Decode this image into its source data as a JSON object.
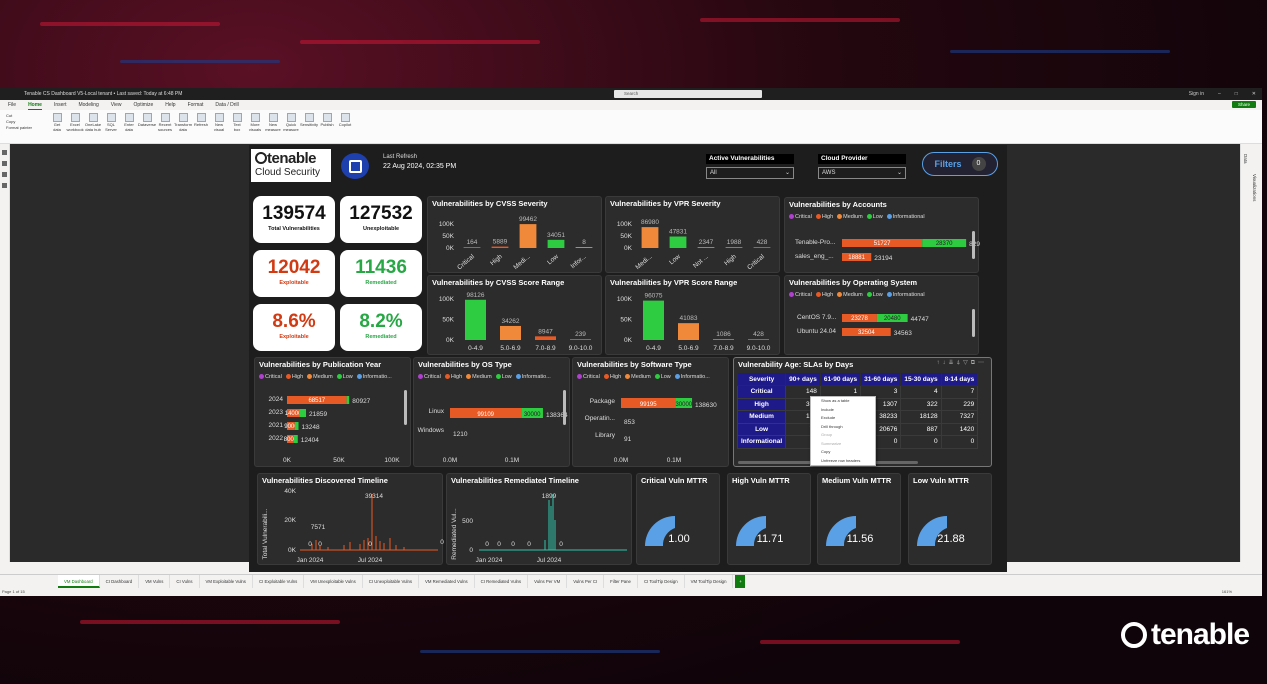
{
  "window": {
    "title": "Tenable CS Dashboard V5-Local tenant • Last saved: Today at 6:48 PM",
    "search_placeholder": "Search",
    "sign_in": "Sign in"
  },
  "ribbon": {
    "tabs": [
      "File",
      "Home",
      "Insert",
      "Modeling",
      "View",
      "Optimize",
      "Help",
      "Format",
      "Data / Drill"
    ],
    "active": "Home",
    "share": "Share",
    "clipboard": [
      "Cut",
      "Copy",
      "Format painter"
    ],
    "buttons": [
      "Get data",
      "Excel workbook",
      "OneLake data hub",
      "SQL Server",
      "Enter data",
      "Dataverse",
      "Recent sources",
      "Transform data",
      "Refresh",
      "New visual",
      "Text box",
      "More visuals",
      "New measure",
      "Quick measure",
      "Sensitivity",
      "Publish",
      "Copilot"
    ],
    "groups": [
      "Clipboard",
      "Data",
      "Queries",
      "Insert",
      "Calculations",
      "Sensitivity",
      "Share",
      "Copilot"
    ]
  },
  "right_pane": {
    "data": "Data",
    "visualizations": "Visualizations"
  },
  "header": {
    "logo_word": "tenable",
    "logo_sub": "Cloud Security",
    "last_refresh_label": "Last Refresh",
    "last_refresh_value": "22 Aug 2024, 02:35 PM",
    "active_vuln_label": "Active Vulnerabilities",
    "active_vuln_value": "All",
    "cloud_provider_label": "Cloud Provider",
    "cloud_provider_value": "AWS",
    "filters_label": "Filters",
    "filters_count": "0"
  },
  "kpis": [
    {
      "value": "139574",
      "label": "Total Vulnerabilities",
      "color": "#111111"
    },
    {
      "value": "127532",
      "label": "Unexploitable",
      "color": "#111111"
    },
    {
      "value": "12042",
      "label": "Exploitable",
      "color": "#d13a12"
    },
    {
      "value": "11436",
      "label": "Remediated",
      "color": "#28a745"
    },
    {
      "value": "8.6%",
      "label": "Exploitable",
      "color": "#d13a12"
    },
    {
      "value": "8.2%",
      "label": "Remediated",
      "color": "#28a745"
    }
  ],
  "colors": {
    "critical": "#b040d0",
    "high": "#e85a25",
    "medium": "#f08a3a",
    "low": "#2ecc40",
    "informational": "#5aa0e6",
    "accent": "#1e1a8a",
    "gauge": "#5aa0e6"
  },
  "legend_labels": {
    "critical": "Critical",
    "high": "High",
    "medium": "Medium",
    "low": "Low",
    "info": "Informational",
    "info_trunc": "Informatio..."
  },
  "cvss_sev": {
    "title": "Vulnerabilities by CVSS Severity",
    "yticks": [
      "100K",
      "50K",
      "0K"
    ],
    "cats": [
      "Critical",
      "High",
      "Medi...",
      "Low",
      "Infor..."
    ],
    "values": [
      164,
      5889,
      99462,
      34051,
      8
    ]
  },
  "vpr_sev": {
    "title": "Vulnerabilities by VPR Severity",
    "yticks": [
      "100K",
      "50K",
      "0K"
    ],
    "cats": [
      "Medi...",
      "Low",
      "Not ...",
      "High",
      "Critical"
    ],
    "values": [
      86980,
      47831,
      2347,
      1988,
      428
    ]
  },
  "cvss_range": {
    "title": "Vulnerabilities by CVSS Score Range",
    "yticks": [
      "100K",
      "50K",
      "0K"
    ],
    "cats": [
      "0-4.9",
      "5.0-6.9",
      "7.0-8.9",
      "9.0-10.0"
    ],
    "values": [
      98126,
      34262,
      8947,
      239
    ]
  },
  "vpr_range": {
    "title": "Vulnerabilities by VPR Score Range",
    "yticks": [
      "100K",
      "50K",
      "0K"
    ],
    "cats": [
      "0-4.9",
      "5.0-6.9",
      "7.0-8.9",
      "9.0-10.0"
    ],
    "values": [
      96075,
      41083,
      1086,
      428
    ]
  },
  "by_accounts": {
    "title": "Vulnerabilities by Accounts",
    "rows": [
      {
        "label": "Tenable-Pro...",
        "medium": 51727,
        "low": 28370,
        "total": "82941"
      },
      {
        "label": "sales_eng_...",
        "medium": 18881,
        "low": 0,
        "total": "23194"
      }
    ]
  },
  "by_os": {
    "title": "Vulnerabilities by Operating System",
    "rows": [
      {
        "label": "CentOS 7.9...",
        "medium": 23278,
        "low": 20480,
        "total": "44747"
      },
      {
        "label": "Ubuntu 24.04",
        "medium": 32504,
        "low": 0,
        "total": "34563"
      }
    ]
  },
  "pub_year": {
    "title": "Vulnerabilities by Publication Year",
    "xticks": [
      "0K",
      "50K",
      "100K"
    ],
    "rows": [
      {
        "label": "2024",
        "medium": 68517,
        "low": 3000,
        "total": "80927"
      },
      {
        "label": "2023",
        "medium": 14000,
        "low": 7859,
        "total": "21859"
      },
      {
        "label": "2021",
        "medium": 9000,
        "low": 4248,
        "total": "13248"
      },
      {
        "label": "2022",
        "medium": 8000,
        "low": 4404,
        "total": "12404"
      }
    ]
  },
  "os_type": {
    "title": "Vulnerabilities by OS Type",
    "xticks": [
      "0.0M",
      "0.1M"
    ],
    "rows": [
      {
        "label": "Linux",
        "medium": 99109,
        "low": 30000,
        "total": "138364"
      },
      {
        "label": "Windows",
        "medium": 0,
        "low": 0,
        "total": "1210"
      }
    ]
  },
  "sw_type": {
    "title": "Vulnerabilities by Software Type",
    "xticks": [
      "0.0M",
      "0.1M"
    ],
    "rows": [
      {
        "label": "Package",
        "medium": 99195,
        "low": 30000,
        "total": "138630"
      },
      {
        "label": "Operatin...",
        "medium": 0,
        "low": 0,
        "total": "853"
      },
      {
        "label": "Library",
        "medium": 0,
        "low": 0,
        "total": "91"
      }
    ]
  },
  "sla": {
    "title": "Vulnerability Age: SLAs by Days",
    "headers": [
      "Severity",
      "90+ days",
      "61-90 days",
      "31-60 days",
      "15-30 days",
      "8-14 days"
    ],
    "rows": [
      [
        "Critical",
        "148",
        "1",
        "3",
        "4",
        "7"
      ],
      [
        "High",
        "361",
        "",
        "1307",
        "322",
        "229"
      ],
      [
        "Medium",
        "124",
        "",
        "38233",
        "18128",
        "7327"
      ],
      [
        "Low",
        "72",
        "",
        "20676",
        "887",
        "1420"
      ],
      [
        "Informational",
        "",
        "",
        "0",
        "0",
        "0"
      ]
    ]
  },
  "context_menu": {
    "items": [
      "Show as a table",
      "Include",
      "Exclude",
      "Drill through",
      "Group",
      "Summarize",
      "Copy",
      "Unfreeze row headers"
    ],
    "disabled": [
      false,
      false,
      false,
      false,
      true,
      true,
      false,
      false
    ]
  },
  "timeline_disc": {
    "title": "Vulnerabilities Discovered Timeline",
    "ylabel": "Total Vulnerabili...",
    "yticks": [
      "40K",
      "20K",
      "0K"
    ],
    "xticks": [
      "Jan 2024",
      "Jul 2024"
    ],
    "annotations": [
      "39314",
      "7571",
      "0",
      "0",
      "0",
      "0"
    ]
  },
  "timeline_rem": {
    "title": "Vulnerabilities Remediated Timeline",
    "ylabel": "Remediated Vul...",
    "yticks": [
      "500",
      "0"
    ],
    "xticks": [
      "Jan 2024",
      "Jul 2024"
    ],
    "annotations": [
      "1899",
      "0",
      "0",
      "0",
      "0",
      "0"
    ]
  },
  "mttr": [
    {
      "title": "Critical Vuln MTTR",
      "value": "1.00"
    },
    {
      "title": "High Vuln MTTR",
      "value": "11.71"
    },
    {
      "title": "Medium Vuln MTTR",
      "value": "11.56"
    },
    {
      "title": "Low Vuln MTTR",
      "value": "21.88"
    }
  ],
  "page_tabs": [
    "VM Dashboard",
    "CI Dashboard",
    "VM Vulns",
    "CI Vulns",
    "VM Exploitable Vulns",
    "CI Exploitable Vulns",
    "VM Unexploitable Vulns",
    "CI Unexploitable Vulns",
    "VM Remediated Vulns",
    "CI Remediated Vulns",
    "Vulns Per VM",
    "Vulns Per CI",
    "Filter Pane",
    "CI ToolTip Design",
    "VM ToolTip Design"
  ],
  "status": {
    "page": "Page 1 of 15",
    "zoom": "161%"
  },
  "watermark": "tenable"
}
